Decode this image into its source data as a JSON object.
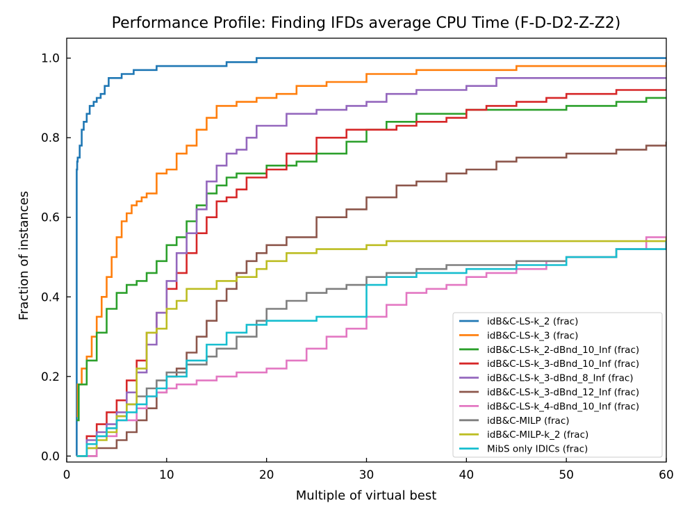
{
  "chart_data": {
    "type": "line",
    "step": true,
    "title": "Performance Profile: Finding IFDs average CPU Time (F-D-D2-Z-Z2)",
    "xlabel": "Multiple of virtual best",
    "ylabel": "Fraction of instances",
    "xlim": [
      0,
      60
    ],
    "ylim": [
      -0.015,
      1.05
    ],
    "xticks": [
      0,
      10,
      20,
      30,
      40,
      50,
      60
    ],
    "xtick_labels": [
      "0",
      "10",
      "20",
      "30",
      "40",
      "50",
      "60"
    ],
    "yticks": [
      0.0,
      0.2,
      0.4,
      0.6,
      0.8,
      1.0
    ],
    "ytick_labels": [
      "0.0",
      "0.2",
      "0.4",
      "0.6",
      "0.8",
      "1.0"
    ],
    "legend_position": "lower right",
    "series": [
      {
        "name": "idB&C-LS-k_2 (frac)",
        "color": "#1f77b4",
        "x": [
          1,
          1,
          1.05,
          1.1,
          1.3,
          1.5,
          1.7,
          2.0,
          2.3,
          2.7,
          3.0,
          3.4,
          3.8,
          4.2,
          5.5,
          6.7,
          9,
          16,
          19,
          60
        ],
        "y": [
          0,
          0.72,
          0.74,
          0.75,
          0.78,
          0.82,
          0.84,
          0.86,
          0.88,
          0.89,
          0.9,
          0.91,
          0.93,
          0.95,
          0.96,
          0.97,
          0.98,
          0.99,
          1.0,
          1.0
        ]
      },
      {
        "name": "idB&C-LS-k_3 (frac)",
        "color": "#ff7f0e",
        "x": [
          1,
          1.1,
          1.5,
          2,
          2.5,
          3,
          3.5,
          4,
          4.5,
          5,
          5.5,
          6,
          6.5,
          7,
          7.5,
          8,
          9,
          10,
          11,
          12,
          13,
          14,
          15,
          17,
          19,
          21,
          23,
          26,
          30,
          35,
          40,
          45,
          59,
          60
        ],
        "y": [
          0.1,
          0.18,
          0.22,
          0.25,
          0.3,
          0.35,
          0.4,
          0.45,
          0.5,
          0.55,
          0.59,
          0.61,
          0.63,
          0.64,
          0.65,
          0.66,
          0.71,
          0.72,
          0.76,
          0.78,
          0.82,
          0.85,
          0.88,
          0.89,
          0.9,
          0.91,
          0.93,
          0.94,
          0.96,
          0.97,
          0.97,
          0.98,
          0.98,
          0.99
        ]
      },
      {
        "name": "idB&C-LS-k_2-dBnd_10_Inf (frac)",
        "color": "#2ca02c",
        "x": [
          1,
          1.2,
          2,
          3,
          4,
          5,
          6,
          7,
          8,
          9,
          10,
          11,
          12,
          13,
          14,
          15,
          16,
          17,
          20,
          23,
          25,
          28,
          30,
          32,
          35,
          40,
          45,
          50,
          55,
          58,
          60
        ],
        "y": [
          0.09,
          0.18,
          0.24,
          0.31,
          0.37,
          0.41,
          0.43,
          0.44,
          0.46,
          0.49,
          0.53,
          0.55,
          0.59,
          0.63,
          0.66,
          0.68,
          0.7,
          0.71,
          0.73,
          0.74,
          0.76,
          0.79,
          0.82,
          0.84,
          0.86,
          0.87,
          0.87,
          0.88,
          0.89,
          0.9,
          0.9
        ]
      },
      {
        "name": "idB&C-LS-k_3-dBnd_10_Inf (frac)",
        "color": "#d62728",
        "x": [
          1,
          2,
          3,
          4,
          5,
          6,
          7,
          8,
          9,
          10,
          11,
          12,
          13,
          14,
          15,
          16,
          17,
          18,
          20,
          22,
          25,
          28,
          30,
          33,
          35,
          38,
          40,
          42,
          45,
          48,
          50,
          55,
          60
        ],
        "y": [
          0,
          0.05,
          0.08,
          0.11,
          0.14,
          0.19,
          0.24,
          0.31,
          0.36,
          0.42,
          0.46,
          0.51,
          0.56,
          0.6,
          0.64,
          0.65,
          0.67,
          0.7,
          0.72,
          0.76,
          0.8,
          0.82,
          0.82,
          0.83,
          0.84,
          0.85,
          0.87,
          0.88,
          0.89,
          0.9,
          0.91,
          0.92,
          0.92
        ]
      },
      {
        "name": "idB&C-LS-k_3-dBnd_8_Inf (frac)",
        "color": "#9467bd",
        "x": [
          1,
          2,
          3,
          4,
          5,
          6,
          7,
          8,
          9,
          10,
          11,
          12,
          13,
          14,
          15,
          16,
          17,
          18,
          19,
          22,
          25,
          28,
          30,
          32,
          35,
          40,
          43,
          45,
          60
        ],
        "y": [
          0,
          0.04,
          0.06,
          0.08,
          0.11,
          0.16,
          0.21,
          0.28,
          0.36,
          0.44,
          0.51,
          0.56,
          0.62,
          0.69,
          0.73,
          0.76,
          0.77,
          0.8,
          0.83,
          0.86,
          0.87,
          0.88,
          0.89,
          0.91,
          0.92,
          0.93,
          0.95,
          0.95,
          0.95
        ]
      },
      {
        "name": "idB&C-LS-k_3-dBnd_12_Inf (frac)",
        "color": "#8c564b",
        "x": [
          1,
          3,
          5,
          6,
          7,
          8,
          9,
          10,
          11,
          12,
          13,
          14,
          15,
          16,
          17,
          18,
          19,
          20,
          22,
          25,
          28,
          30,
          33,
          35,
          38,
          40,
          43,
          45,
          50,
          53,
          55,
          58,
          59,
          60
        ],
        "y": [
          0,
          0.02,
          0.04,
          0.06,
          0.09,
          0.12,
          0.16,
          0.2,
          0.22,
          0.26,
          0.3,
          0.34,
          0.39,
          0.42,
          0.46,
          0.49,
          0.51,
          0.53,
          0.55,
          0.6,
          0.62,
          0.65,
          0.68,
          0.69,
          0.71,
          0.72,
          0.74,
          0.75,
          0.76,
          0.76,
          0.77,
          0.78,
          0.78,
          0.79
        ]
      },
      {
        "name": "idB&C-LS-k_4-dBnd_10_Inf (frac)",
        "color": "#e377c2",
        "x": [
          1,
          3,
          5,
          7,
          8,
          9,
          10,
          11,
          13,
          15,
          17,
          20,
          22,
          24,
          26,
          28,
          30,
          32,
          34,
          36,
          38,
          40,
          42,
          45,
          48,
          50,
          55,
          58,
          60
        ],
        "y": [
          0,
          0.05,
          0.09,
          0.12,
          0.15,
          0.16,
          0.17,
          0.18,
          0.19,
          0.2,
          0.21,
          0.22,
          0.24,
          0.27,
          0.3,
          0.32,
          0.35,
          0.38,
          0.41,
          0.42,
          0.43,
          0.45,
          0.46,
          0.47,
          0.49,
          0.5,
          0.52,
          0.55,
          0.55
        ]
      },
      {
        "name": "idB&C-MILP (frac)",
        "color": "#7f7f7f",
        "x": [
          1,
          2,
          3,
          4,
          5,
          6,
          7,
          8,
          9,
          10,
          12,
          14,
          15,
          17,
          19,
          20,
          22,
          24,
          26,
          28,
          30,
          32,
          35,
          38,
          40,
          45,
          50,
          55,
          60
        ],
        "y": [
          0,
          0.02,
          0.05,
          0.07,
          0.1,
          0.13,
          0.15,
          0.17,
          0.19,
          0.21,
          0.23,
          0.25,
          0.27,
          0.3,
          0.34,
          0.37,
          0.39,
          0.41,
          0.42,
          0.43,
          0.45,
          0.46,
          0.47,
          0.48,
          0.48,
          0.49,
          0.5,
          0.52,
          0.54
        ]
      },
      {
        "name": "idB&C-MILP-k_2 (frac)",
        "color": "#bcbd22",
        "x": [
          1,
          2,
          3,
          4,
          5,
          6,
          7,
          8,
          9,
          10,
          11,
          12,
          13,
          14,
          15,
          17,
          19,
          20,
          22,
          25,
          30,
          32,
          60
        ],
        "y": [
          0,
          0.02,
          0.04,
          0.06,
          0.1,
          0.13,
          0.22,
          0.31,
          0.32,
          0.37,
          0.39,
          0.42,
          0.42,
          0.42,
          0.44,
          0.45,
          0.47,
          0.49,
          0.51,
          0.52,
          0.53,
          0.54,
          0.55
        ]
      },
      {
        "name": "MibS only IDICs (frac)",
        "color": "#17becf",
        "x": [
          1,
          2,
          3,
          4,
          5,
          6,
          7,
          8,
          9,
          10,
          12,
          14,
          16,
          18,
          20,
          25,
          30,
          32,
          35,
          40,
          45,
          50,
          55,
          60
        ],
        "y": [
          0,
          0.03,
          0.05,
          0.07,
          0.09,
          0.11,
          0.13,
          0.15,
          0.17,
          0.2,
          0.24,
          0.28,
          0.31,
          0.33,
          0.34,
          0.35,
          0.43,
          0.45,
          0.46,
          0.47,
          0.48,
          0.5,
          0.52,
          0.54
        ]
      }
    ]
  }
}
